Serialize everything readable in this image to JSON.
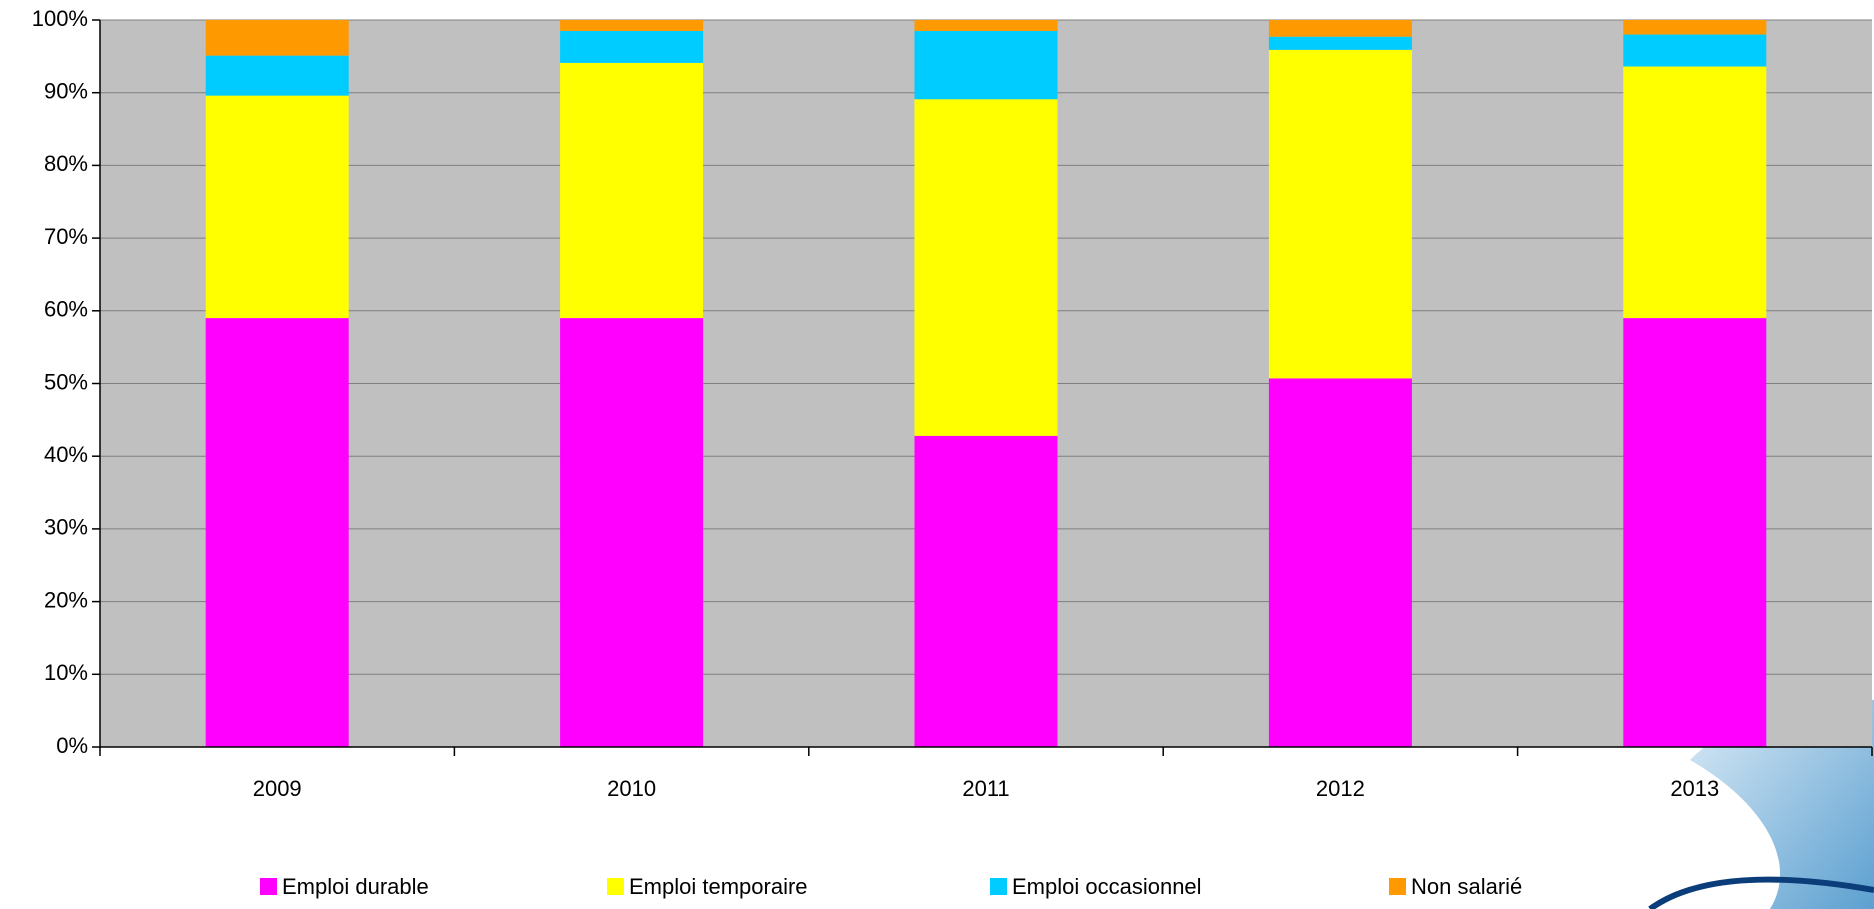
{
  "chart_data": {
    "type": "stacked_bar",
    "categories": [
      "2009",
      "2010",
      "2011",
      "2012",
      "2013"
    ],
    "series": [
      {
        "name": "Emploi durable",
        "color": "#ff00ff",
        "values": [
          59,
          59,
          42.8,
          50.7,
          59
        ]
      },
      {
        "name": "Emploi temporaire",
        "color": "#ffff00",
        "values": [
          30.6,
          35.1,
          46.3,
          45.2,
          34.6
        ]
      },
      {
        "name": "Emploi occasionnel",
        "color": "#00ccff",
        "values": [
          5.5,
          4.4,
          9.4,
          1.8,
          4.4
        ]
      },
      {
        "name": "Non salarié",
        "color": "#ff9900",
        "values": [
          4.9,
          1.5,
          1.5,
          2.3,
          2.0
        ]
      }
    ],
    "ylim": [
      0,
      100
    ],
    "yticks": [
      {
        "value": 0,
        "label": "0%"
      },
      {
        "value": 10,
        "label": "10%"
      },
      {
        "value": 20,
        "label": "20%"
      },
      {
        "value": 30,
        "label": "30%"
      },
      {
        "value": 40,
        "label": "40%"
      },
      {
        "value": 50,
        "label": "50%"
      },
      {
        "value": 60,
        "label": "60%"
      },
      {
        "value": 70,
        "label": "70%"
      },
      {
        "value": 80,
        "label": "80%"
      },
      {
        "value": 90,
        "label": "90%"
      },
      {
        "value": 100,
        "label": "100%"
      }
    ],
    "grid": true,
    "legend": "bottom"
  }
}
